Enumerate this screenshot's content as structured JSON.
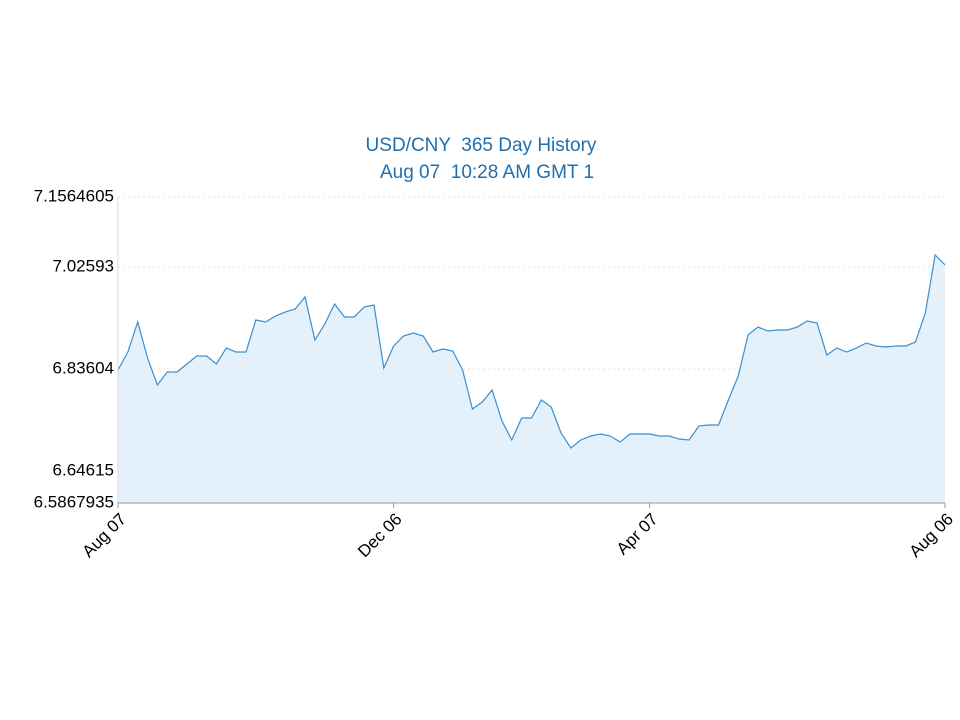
{
  "chart_data": {
    "type": "area",
    "title": "USD/CNY  365 Day History",
    "subtitle": "Aug 07  10:28 AM GMT 1",
    "categories": [
      "Aug 07",
      null,
      null,
      null,
      null,
      null,
      null,
      null,
      null,
      null,
      null,
      null,
      null,
      null,
      null,
      null,
      null,
      null,
      null,
      null,
      null,
      null,
      null,
      null,
      null,
      null,
      null,
      null,
      "Dec 06",
      null,
      null,
      null,
      null,
      null,
      null,
      null,
      null,
      null,
      null,
      null,
      null,
      null,
      null,
      null,
      null,
      null,
      null,
      null,
      null,
      null,
      null,
      null,
      null,
      null,
      "Apr 07",
      null,
      null,
      null,
      null,
      null,
      null,
      null,
      null,
      null,
      null,
      null,
      null,
      null,
      null,
      null,
      null,
      null,
      null,
      null,
      null,
      null,
      null,
      null,
      null,
      null,
      null,
      null,
      null,
      null,
      "Aug 06"
    ],
    "series": [
      {
        "name": "USD/CNY",
        "color": "#3a8fd0",
        "fill": "#e4f1fa",
        "values": [
          6.8344,
          6.8679,
          6.9238,
          6.8567,
          6.8065,
          6.8307,
          6.8307,
          6.8456,
          6.8605,
          6.8605,
          6.8456,
          6.8753,
          6.8679,
          6.8679,
          6.9275,
          6.9238,
          6.9349,
          6.9424,
          6.948,
          6.9703,
          6.8902,
          6.92,
          6.9573,
          6.9331,
          6.9331,
          6.9517,
          6.9554,
          6.8381,
          6.8791,
          6.8977,
          6.9033,
          6.8977,
          6.8679,
          6.8735,
          6.8698,
          6.8344,
          6.7618,
          6.7748,
          6.7972,
          6.7394,
          6.7041,
          6.745,
          6.745,
          6.7785,
          6.7655,
          6.7171,
          6.6892,
          6.7041,
          6.7115,
          6.7152,
          6.7115,
          6.7003,
          6.7152,
          6.7152,
          6.7152,
          6.7115,
          6.7115,
          6.7059,
          6.7041,
          6.7301,
          6.732,
          6.732,
          6.7785,
          6.8232,
          6.8996,
          6.9144,
          6.907,
          6.9089,
          6.9089,
          6.9144,
          6.9256,
          6.9219,
          6.8623,
          6.8753,
          6.8679,
          6.8753,
          6.8847,
          6.8791,
          6.8772,
          6.8791,
          6.8791,
          6.8865,
          6.9405,
          7.0485,
          7.0299
        ]
      }
    ],
    "ylim": [
      6.5867935,
      7.1564605
    ],
    "yticks": [
      6.5867935,
      6.64615,
      6.83604,
      7.02593,
      7.1564605
    ],
    "grid": true
  }
}
